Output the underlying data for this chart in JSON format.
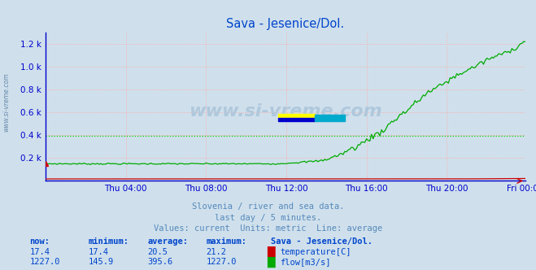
{
  "title": "Sava - Jesenice/Dol.",
  "background_color": "#cfe0ec",
  "plot_bg_color": "#cfe0ec",
  "grid_color_x": "#ffaaaa",
  "grid_color_y": "#aaaaff",
  "title_color": "#0044cc",
  "axis_color": "#0000cc",
  "spine_color": "#0000cc",
  "temp_color": "#cc0000",
  "flow_color": "#00aa00",
  "avg_line_color": "#00cc00",
  "watermark_text": "www.si-vreme.com",
  "watermark_color": "#b0c8dc",
  "subtitle_color": "#5588bb",
  "table_color": "#0044cc",
  "x_tick_labels": [
    "Thu 04:00",
    "Thu 08:00",
    "Thu 12:00",
    "Thu 16:00",
    "Thu 20:00",
    "Fri 00:00"
  ],
  "ytick_vals": [
    200,
    400,
    600,
    800,
    1000,
    1200
  ],
  "ytick_labels": [
    "0.2 k",
    "0.4 k",
    "0.6 k",
    "0.8 k",
    "1.0 k",
    "1.2 k"
  ],
  "ylim_max": 1300,
  "avg_flow_value": 395.6,
  "subtitle1": "Slovenia / river and sea data.",
  "subtitle2": "last day / 5 minutes.",
  "subtitle3": "Values: current  Units: metric  Line: average",
  "headers": [
    "now:",
    "minimum:",
    "average:",
    "maximum:"
  ],
  "station_name": "Sava - Jesenice/Dol.",
  "temp_row": [
    "17.4",
    "17.4",
    "20.5",
    "21.2"
  ],
  "flow_row": [
    "1227.0",
    "145.9",
    "395.6",
    "1227.0"
  ],
  "temp_label": "temperature[C]",
  "flow_label": "flow[m3/s]",
  "logo_colors": [
    "#ffff00",
    "#0000cc",
    "#00aacc"
  ]
}
